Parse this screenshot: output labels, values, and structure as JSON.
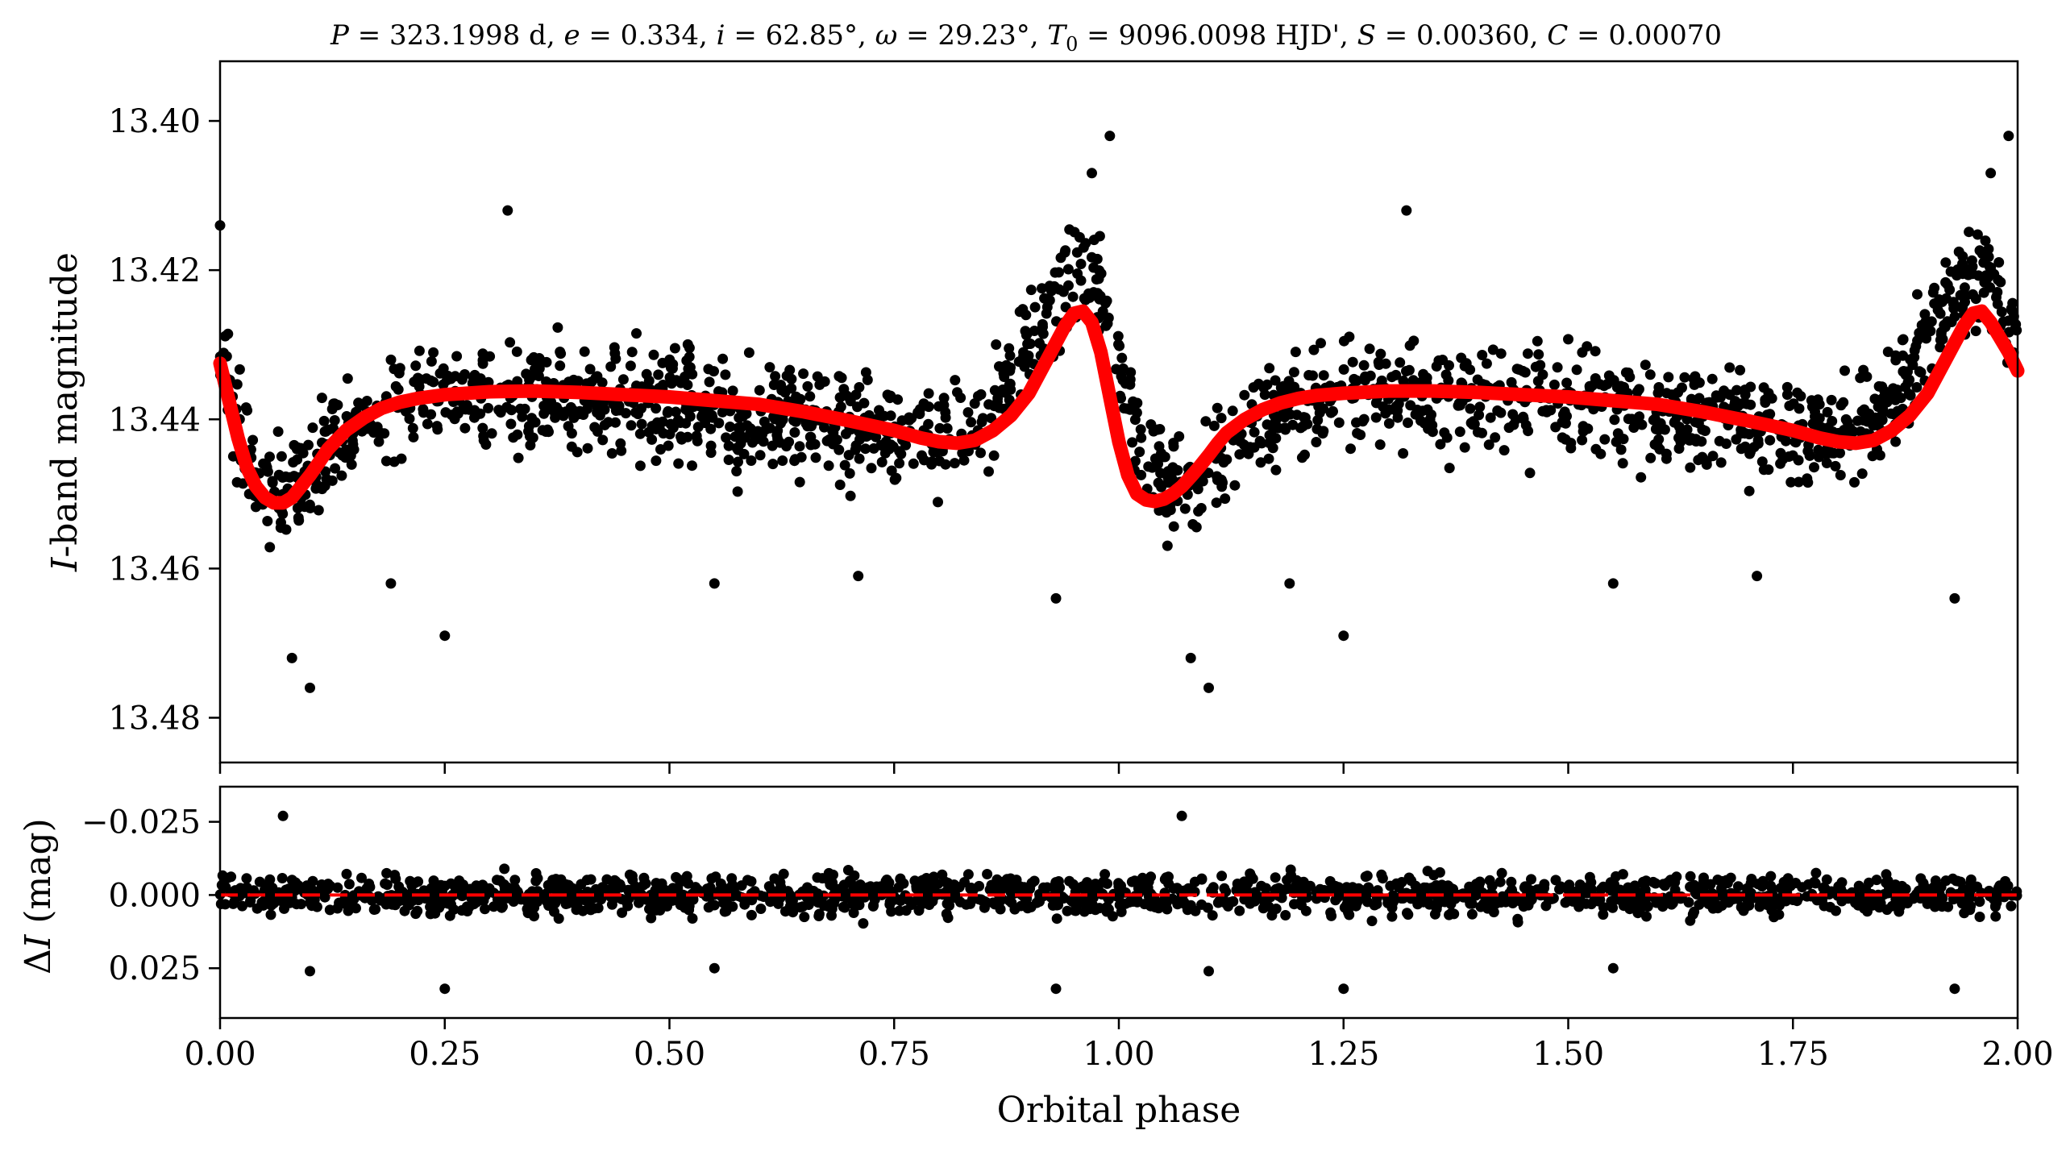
{
  "chart_data": [
    {
      "type": "scatter",
      "panel": "top",
      "title": "P = 323.1998 d, e = 0.334, i = 62.85°, ω = 29.23°, T0 = 9096.0098 HJD', S = 0.00360, C = 0.00070",
      "ylabel": "I-band magnitude",
      "xlabel": "",
      "xlim": [
        0.0,
        2.0
      ],
      "ylim": [
        13.486,
        13.392
      ],
      "y_inverted": true,
      "yticks": [
        13.4,
        13.42,
        13.44,
        13.46,
        13.48
      ],
      "ytick_labels": [
        "13.40",
        "13.42",
        "13.44",
        "13.46",
        "13.48"
      ],
      "xticks": [
        0.0,
        0.25,
        0.5,
        0.75,
        1.0,
        1.25,
        1.5,
        1.75,
        2.0
      ],
      "grid": false,
      "series": [
        {
          "kind": "observations",
          "marker_color": "#000000",
          "band_center": {
            "x": [
              0.0,
              0.02,
              0.04,
              0.06,
              0.08,
              0.1,
              0.12,
              0.15,
              0.2,
              0.3,
              0.4,
              0.5,
              0.6,
              0.7,
              0.78,
              0.84,
              0.88,
              0.92,
              0.95,
              0.97,
              0.99,
              1.0,
              1.02,
              1.04,
              1.06,
              1.08,
              1.1,
              1.12,
              1.15,
              1.2,
              1.3,
              1.4,
              1.5,
              1.6,
              1.7,
              1.78,
              1.84,
              1.88,
              1.92,
              1.95,
              1.97,
              1.99,
              2.0
            ],
            "y": [
              13.432,
              13.441,
              13.447,
              13.449,
              13.449,
              13.447,
              13.444,
              13.441,
              13.438,
              13.436,
              13.437,
              13.438,
              13.44,
              13.441,
              13.443,
              13.441,
              13.434,
              13.425,
              13.42,
              13.421,
              13.427,
              13.432,
              13.441,
              13.447,
              13.449,
              13.449,
              13.447,
              13.444,
              13.441,
              13.438,
              13.436,
              13.437,
              13.438,
              13.44,
              13.441,
              13.443,
              13.441,
              13.434,
              13.425,
              13.42,
              13.421,
              13.427,
              13.432
            ]
          },
          "scatter_half_width": 0.008,
          "outliers": [
            {
              "x": 0.99,
              "y": 13.402
            },
            {
              "x": 1.99,
              "y": 13.402
            },
            {
              "x": 0.97,
              "y": 13.407
            },
            {
              "x": 1.97,
              "y": 13.407
            },
            {
              "x": 0.1,
              "y": 13.476
            },
            {
              "x": 1.1,
              "y": 13.476
            },
            {
              "x": 0.08,
              "y": 13.472
            },
            {
              "x": 1.08,
              "y": 13.472
            },
            {
              "x": 0.25,
              "y": 13.469
            },
            {
              "x": 1.25,
              "y": 13.469
            },
            {
              "x": 0.93,
              "y": 13.464
            },
            {
              "x": 1.93,
              "y": 13.464
            },
            {
              "x": 0.0,
              "y": 13.414
            },
            {
              "x": 0.32,
              "y": 13.412
            },
            {
              "x": 1.32,
              "y": 13.412
            },
            {
              "x": 0.19,
              "y": 13.462
            },
            {
              "x": 1.19,
              "y": 13.462
            },
            {
              "x": 0.55,
              "y": 13.462
            },
            {
              "x": 1.55,
              "y": 13.462
            },
            {
              "x": 0.71,
              "y": 13.461
            },
            {
              "x": 1.71,
              "y": 13.461
            }
          ]
        },
        {
          "kind": "model",
          "line_color": "#ff0000",
          "x": [
            0.0,
            0.01,
            0.02,
            0.03,
            0.04,
            0.05,
            0.06,
            0.07,
            0.08,
            0.09,
            0.1,
            0.11,
            0.12,
            0.14,
            0.16,
            0.18,
            0.2,
            0.22,
            0.25,
            0.3,
            0.35,
            0.4,
            0.45,
            0.5,
            0.55,
            0.6,
            0.65,
            0.7,
            0.75,
            0.78,
            0.8,
            0.82,
            0.84,
            0.86,
            0.88,
            0.9,
            0.92,
            0.94,
            0.95,
            0.96,
            0.97,
            0.98,
            0.99,
            1.0,
            1.01,
            1.02,
            1.03,
            1.04,
            1.05,
            1.06,
            1.07,
            1.08,
            1.09,
            1.1,
            1.11,
            1.12,
            1.14,
            1.16,
            1.18,
            1.2,
            1.22,
            1.25,
            1.3,
            1.35,
            1.4,
            1.45,
            1.5,
            1.55,
            1.6,
            1.65,
            1.7,
            1.75,
            1.78,
            1.8,
            1.82,
            1.84,
            1.86,
            1.88,
            1.9,
            1.92,
            1.94,
            1.95,
            1.96,
            1.97,
            1.98,
            1.99,
            2.0
          ],
          "y": [
            13.4325,
            13.4375,
            13.4425,
            13.4465,
            13.449,
            13.4505,
            13.4512,
            13.4512,
            13.4505,
            13.449,
            13.4475,
            13.4458,
            13.444,
            13.4415,
            13.4398,
            13.4385,
            13.4377,
            13.4372,
            13.4367,
            13.4363,
            13.4362,
            13.4364,
            13.4367,
            13.437,
            13.4375,
            13.438,
            13.439,
            13.4402,
            13.4415,
            13.4425,
            13.443,
            13.4432,
            13.4428,
            13.4415,
            13.4395,
            13.4365,
            13.432,
            13.4275,
            13.4258,
            13.4255,
            13.427,
            13.431,
            13.437,
            13.443,
            13.4475,
            13.45,
            13.4508,
            13.451,
            13.4507,
            13.45,
            13.449,
            13.4477,
            13.4463,
            13.4448,
            13.4432,
            13.4418,
            13.44,
            13.4387,
            13.4378,
            13.4372,
            13.4368,
            13.4365,
            13.4362,
            13.4362,
            13.4364,
            13.4367,
            13.437,
            13.4375,
            13.438,
            13.439,
            13.4402,
            13.4415,
            13.4425,
            13.443,
            13.4432,
            13.4428,
            13.4415,
            13.4395,
            13.4365,
            13.432,
            13.4275,
            13.4258,
            13.4255,
            13.427,
            13.429,
            13.431,
            13.4335
          ]
        }
      ]
    },
    {
      "type": "scatter",
      "panel": "bottom",
      "title": "",
      "ylabel": "ΔI (mag)",
      "xlabel": "Orbital phase",
      "xlim": [
        0.0,
        2.0
      ],
      "ylim": [
        0.042,
        -0.037
      ],
      "y_inverted": true,
      "yticks": [
        -0.025,
        0.0,
        0.025
      ],
      "ytick_labels": [
        "−0.025",
        "0.000",
        "0.025"
      ],
      "xticks": [
        0.0,
        0.25,
        0.5,
        0.75,
        1.0,
        1.25,
        1.5,
        1.75,
        2.0
      ],
      "xtick_labels": [
        "0.00",
        "0.25",
        "0.50",
        "0.75",
        "1.00",
        "1.25",
        "1.50",
        "1.75",
        "2.00"
      ],
      "grid": false,
      "series": [
        {
          "kind": "residuals",
          "marker_color": "#000000",
          "scatter_half_width": 0.008,
          "outliers": [
            {
              "x": 0.07,
              "y": -0.027
            },
            {
              "x": 1.07,
              "y": -0.027
            },
            {
              "x": 0.25,
              "y": 0.032
            },
            {
              "x": 1.25,
              "y": 0.032
            },
            {
              "x": 0.93,
              "y": 0.032
            },
            {
              "x": 1.93,
              "y": 0.032
            },
            {
              "x": 0.1,
              "y": 0.026
            },
            {
              "x": 1.1,
              "y": 0.026
            },
            {
              "x": 0.55,
              "y": 0.025
            },
            {
              "x": 1.55,
              "y": 0.025
            }
          ]
        },
        {
          "kind": "zero-line",
          "line_color": "#ff0000",
          "line_style": "dashed",
          "y": 0.0
        }
      ]
    }
  ]
}
